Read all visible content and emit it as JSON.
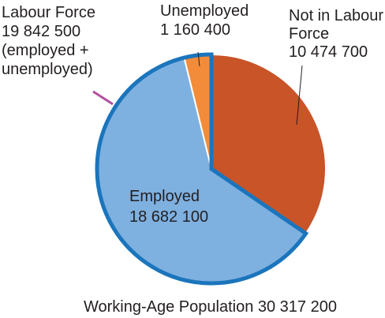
{
  "chart_data": {
    "type": "pie",
    "title": "",
    "caption": "Working-Age Population 30 317 200",
    "slices": [
      {
        "name": "Not in Labour Force",
        "value": 10474700,
        "value_label": "10 474 700",
        "color": "#c85428"
      },
      {
        "name": "Employed",
        "value": 18682100,
        "value_label": "18 682 100",
        "color": "#7eb0e0"
      },
      {
        "name": "Unemployed",
        "value": 1160400,
        "value_label": "1 160 400",
        "color": "#f28c3a"
      }
    ],
    "group": {
      "name": "Labour Force",
      "value": 19842500,
      "value_label": "19 842 500",
      "note": "(employed + unemployed)",
      "members": [
        "Employed",
        "Unemployed"
      ],
      "outline_color": "#1b75bc"
    },
    "leader_line_color": "#b14fa0"
  }
}
